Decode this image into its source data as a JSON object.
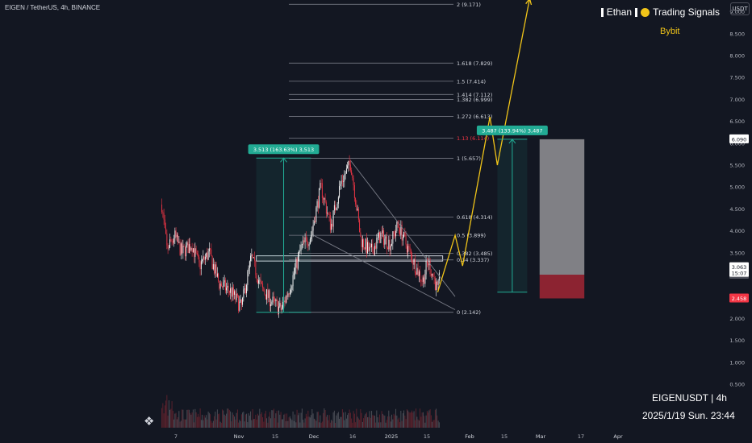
{
  "header": {
    "title": "EIGEN / TetherUS, 4h, BINANCE"
  },
  "brand": {
    "name": "Ethan",
    "product": "Trading Signals",
    "exchange": "Bybit"
  },
  "currency_badge": "USDT",
  "watermark": {
    "symbol_line": "EIGENUSDT | 4h",
    "datetime": "2025/1/19 Sun. 23:44"
  },
  "colors": {
    "background": "#131722",
    "up": "#ffffff",
    "down": "#f23645",
    "projection": "#f0c419",
    "measure": "#22ab94",
    "fib": "#787b86"
  },
  "chart_data": {
    "type": "candlestick",
    "title": "EIGEN / TetherUS, 4h, BINANCE",
    "y_axis": {
      "scale": "linear",
      "range": [
        0.5,
        9.7
      ],
      "ticks": [
        "9.500",
        "9.000",
        "8.500",
        "8.000",
        "7.500",
        "7.000",
        "6.500",
        "6.000",
        "5.500",
        "5.000",
        "4.500",
        "4.000",
        "3.500",
        "3.000",
        "2.500",
        "2.000",
        "1.500",
        "1.000",
        "0.500"
      ]
    },
    "x_axis": {
      "ticks": [
        "7",
        "Nov",
        "15",
        "Dec",
        "16",
        "2025",
        "15",
        "Feb",
        "15",
        "Mar",
        "17",
        "Apr"
      ]
    },
    "price_path": [
      {
        "date": "2024-10-01",
        "price": 4.6
      },
      {
        "date": "2024-10-03",
        "price": 3.6
      },
      {
        "date": "2024-10-06",
        "price": 3.9
      },
      {
        "date": "2024-10-09",
        "price": 3.5
      },
      {
        "date": "2024-10-13",
        "price": 3.7
      },
      {
        "date": "2024-10-16",
        "price": 3.2
      },
      {
        "date": "2024-10-20",
        "price": 3.5
      },
      {
        "date": "2024-10-24",
        "price": 2.8
      },
      {
        "date": "2024-10-29",
        "price": 2.6
      },
      {
        "date": "2024-11-02",
        "price": 2.25
      },
      {
        "date": "2024-11-06",
        "price": 3.4
      },
      {
        "date": "2024-11-10",
        "price": 2.7
      },
      {
        "date": "2024-11-14",
        "price": 2.4
      },
      {
        "date": "2024-11-18",
        "price": 2.2
      },
      {
        "date": "2024-11-22",
        "price": 2.8
      },
      {
        "date": "2024-11-26",
        "price": 3.6
      },
      {
        "date": "2024-11-30",
        "price": 3.9
      },
      {
        "date": "2024-12-04",
        "price": 5.0
      },
      {
        "date": "2024-12-08",
        "price": 4.1
      },
      {
        "date": "2024-12-12",
        "price": 5.1
      },
      {
        "date": "2024-12-16",
        "price": 5.55
      },
      {
        "date": "2024-12-18",
        "price": 4.7
      },
      {
        "date": "2024-12-20",
        "price": 3.8
      },
      {
        "date": "2024-12-24",
        "price": 3.5
      },
      {
        "date": "2024-12-28",
        "price": 3.9
      },
      {
        "date": "2025-01-01",
        "price": 3.7
      },
      {
        "date": "2025-01-04",
        "price": 4.15
      },
      {
        "date": "2025-01-08",
        "price": 3.6
      },
      {
        "date": "2025-01-11",
        "price": 3.2
      },
      {
        "date": "2025-01-14",
        "price": 2.85
      },
      {
        "date": "2025-01-16",
        "price": 3.3
      },
      {
        "date": "2025-01-18",
        "price": 3.0
      },
      {
        "date": "2025-01-20",
        "price": 2.6
      },
      {
        "date": "2025-01-21",
        "price": 3.063
      }
    ],
    "current_price": {
      "value": "3.063",
      "countdown": "15:07"
    },
    "price_labels": [
      {
        "text": "6.090",
        "value": 6.09,
        "style": "white"
      },
      {
        "text": "3.000",
        "value": 3.0,
        "style": "grey"
      },
      {
        "text": "2.458",
        "value": 2.458,
        "style": "red"
      }
    ],
    "fib_levels": [
      {
        "label": "2 (9.171)",
        "value": 9.171
      },
      {
        "label": "1.618 (7.829)",
        "value": 7.829
      },
      {
        "label": "1.5 (7.414)",
        "value": 7.414
      },
      {
        "label": "1.414 (7.112)",
        "value": 7.112
      },
      {
        "label": "1.382 (6.999)",
        "value": 6.999
      },
      {
        "label": "1.272 (6.613)",
        "value": 6.613
      },
      {
        "label": "1.13 (6.114)",
        "value": 6.114
      },
      {
        "label": "1 (5.657)",
        "value": 5.657
      },
      {
        "label": "0.618 (4.314)",
        "value": 4.314
      },
      {
        "label": "0.5 (3.899)",
        "value": 3.899
      },
      {
        "label": "0.382 (3.485)",
        "value": 3.485
      },
      {
        "label": "0.34 (3.337)",
        "value": 3.337
      },
      {
        "label": "0 (2.142)",
        "value": 2.142
      }
    ],
    "measures": [
      {
        "label": "3.513 (163.63%) 3,513",
        "from_date": "2024-11-08",
        "to_date": "2024-11-30",
        "low": 2.14,
        "high": 5.66
      },
      {
        "label": "3.487 (133.94%) 3,487",
        "from_date": "2025-02-13",
        "to_date": "2025-02-25",
        "low": 2.6,
        "high": 6.09
      }
    ],
    "support_zone": {
      "from_date": "2024-11-08",
      "to_date": "2025-01-22",
      "low": 3.31,
      "high": 3.43
    },
    "wedge": {
      "upper": [
        {
          "date": "2024-12-16",
          "price": 5.6
        },
        {
          "date": "2025-01-27",
          "price": 2.5
        }
      ],
      "lower": [
        {
          "date": "2024-12-01",
          "price": 3.9
        },
        {
          "date": "2025-01-27",
          "price": 2.2
        }
      ]
    },
    "projection": [
      {
        "date": "2025-01-20",
        "price": 2.6
      },
      {
        "date": "2025-01-27",
        "price": 3.9
      },
      {
        "date": "2025-01-30",
        "price": 3.2
      },
      {
        "date": "2025-02-10",
        "price": 6.6
      },
      {
        "date": "2025-02-13",
        "price": 5.5
      },
      {
        "date": "2025-02-26",
        "price": 9.3
      }
    ],
    "position_box": {
      "from_date": "2025-03-02",
      "to_date": "2025-03-20",
      "entry": 3.0,
      "target": 6.09,
      "stop": 2.458
    }
  }
}
